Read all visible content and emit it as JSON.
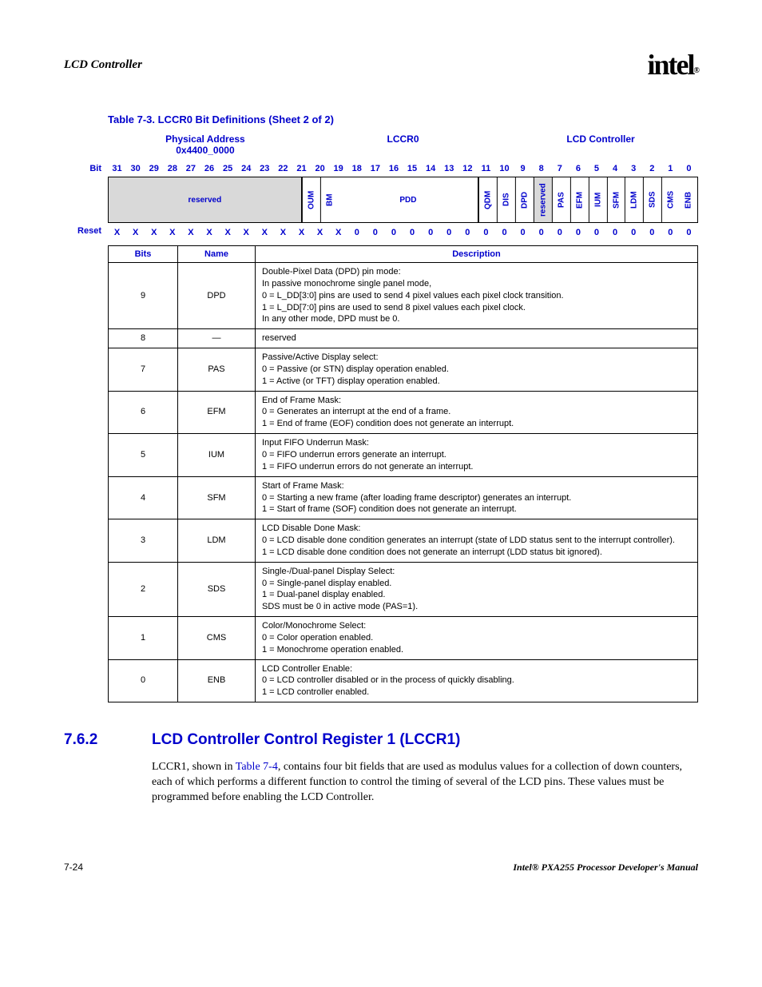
{
  "header": {
    "title": "LCD Controller",
    "logo": "intel",
    "logo_sub": "®"
  },
  "caption": "Table 7-3. LCCR0 Bit Definitions (Sheet 2 of 2)",
  "reg_head": {
    "left_line1": "Physical Address",
    "left_line2": "0x4400_0000",
    "mid": "LCCR0",
    "right": "LCD Controller"
  },
  "bit_label": "Bit",
  "reset_label": "Reset",
  "bits": [
    "31",
    "30",
    "29",
    "28",
    "27",
    "26",
    "25",
    "24",
    "23",
    "22",
    "21",
    "20",
    "19",
    "18",
    "17",
    "16",
    "15",
    "14",
    "13",
    "12",
    "11",
    "10",
    "9",
    "8",
    "7",
    "6",
    "5",
    "4",
    "3",
    "2",
    "1",
    "0"
  ],
  "names": {
    "reserved": "reserved",
    "oum": "OUM",
    "bm": "BM",
    "pdd": "PDD",
    "qdm": "QDM",
    "dis": "DIS",
    "dpd": "DPD",
    "reserved_one": "reserved",
    "pas": "PAS",
    "efm": "EFM",
    "ium": "IUM",
    "sfm": "SFM",
    "ldm": "LDM",
    "sds": "SDS",
    "cms": "CMS",
    "enb": "ENB"
  },
  "reset": [
    "X",
    "X",
    "X",
    "X",
    "X",
    "X",
    "X",
    "X",
    "X",
    "X",
    "X",
    "X",
    "X",
    "0",
    "0",
    "0",
    "0",
    "0",
    "0",
    "0",
    "0",
    "0",
    "0",
    "0",
    "0",
    "0",
    "0",
    "0",
    "0",
    "0",
    "0",
    "0"
  ],
  "desc_head": {
    "bits": "Bits",
    "name": "Name",
    "desc": "Description"
  },
  "rows": [
    {
      "bits": "9",
      "name": "DPD",
      "desc": "Double-Pixel Data (DPD) pin mode:\nIn passive monochrome single panel mode,\n0 =  L_DD[3:0] pins are used to send 4 pixel values each pixel clock transition.\n1 =  L_DD[7:0] pins are used to send 8 pixel values each pixel clock.\nIn any other mode, DPD must be 0."
    },
    {
      "bits": "8",
      "name": "—",
      "desc": "reserved"
    },
    {
      "bits": "7",
      "name": "PAS",
      "desc": "Passive/Active Display select:\n0 =  Passive (or STN) display operation enabled.\n1 =  Active (or TFT) display operation enabled."
    },
    {
      "bits": "6",
      "name": "EFM",
      "desc": "End of Frame Mask:\n0 =  Generates an interrupt at the end of a frame.\n1 =  End of frame (EOF) condition does not generate an interrupt."
    },
    {
      "bits": "5",
      "name": "IUM",
      "desc": "Input FIFO Underrun Mask:\n0 =  FIFO underrun errors generate an interrupt.\n1 =  FIFO underrun errors do not generate an interrupt."
    },
    {
      "bits": "4",
      "name": "SFM",
      "desc": "Start of Frame Mask:\n0 =  Starting a new frame (after loading frame descriptor) generates an interrupt.\n1 =  Start of frame (SOF) condition does not generate an interrupt."
    },
    {
      "bits": "3",
      "name": "LDM",
      "desc": "LCD Disable Done Mask:\n0 =  LCD disable done condition generates an interrupt (state of LDD status sent to the interrupt controller).\n1 =  LCD disable done condition does not generate an interrupt (LDD status bit ignored)."
    },
    {
      "bits": "2",
      "name": "SDS",
      "desc": "Single-/Dual-panel Display Select:\n0 =  Single-panel display enabled.\n1 =  Dual-panel display enabled.\nSDS must be 0 in active mode (PAS=1)."
    },
    {
      "bits": "1",
      "name": "CMS",
      "desc": "Color/Monochrome Select:\n0 =  Color operation enabled.\n1 =  Monochrome operation enabled."
    },
    {
      "bits": "0",
      "name": "ENB",
      "desc": "LCD Controller Enable:\n0 =  LCD controller disabled or in the process of quickly disabling.\n1 =  LCD controller enabled."
    }
  ],
  "section": {
    "num": "7.6.2",
    "title": "LCD Controller Control Register 1 (LCCR1)"
  },
  "body": {
    "pre": "LCCR1, shown in ",
    "link": "Table 7-4",
    "post": ", contains four bit fields that are used as modulus values for a collection of down counters, each of which performs a different function to control the timing of several of the LCD pins. These values must be programmed before enabling the LCD Controller."
  },
  "footer": {
    "left": "7-24",
    "right": "Intel® PXA255 Processor Developer's Manual"
  },
  "colors": {
    "blue": "#0000cc",
    "grey": "#d9d9d9",
    "black": "#000000",
    "white": "#ffffff"
  }
}
